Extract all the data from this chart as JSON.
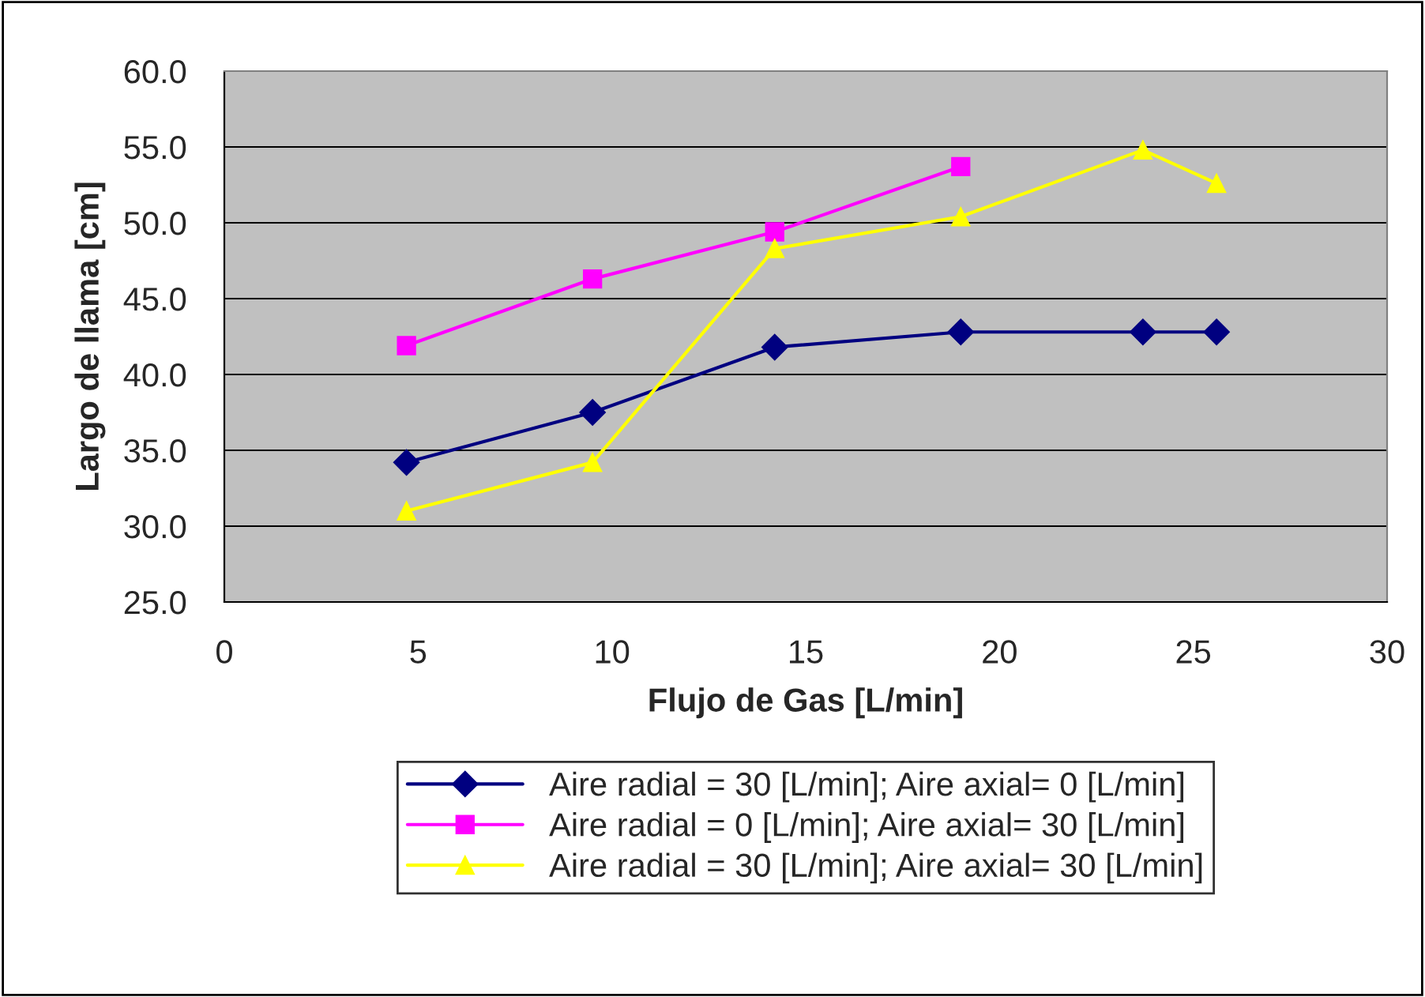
{
  "chart_data": {
    "type": "line",
    "xlabel": "Flujo de Gas [L/min]",
    "ylabel": "Largo de llama [cm]",
    "xlim": [
      0,
      30
    ],
    "xticks": [
      0,
      5,
      10,
      15,
      20,
      25,
      30
    ],
    "ylim": [
      25,
      60
    ],
    "yticks": [
      {
        "value": 25,
        "label": "25.0"
      },
      {
        "value": 30,
        "label": "30.0"
      },
      {
        "value": 35,
        "label": "35.0"
      },
      {
        "value": 40,
        "label": "40.0"
      },
      {
        "value": 45,
        "label": "45.0"
      },
      {
        "value": 50,
        "label": "50.0"
      },
      {
        "value": 55,
        "label": "55.0"
      },
      {
        "value": 60,
        "label": "60.0"
      }
    ],
    "grid": "y",
    "legend": "bottom",
    "series": [
      {
        "name": "Aire radial = 30 [L/min]; Aire axial= 0 [L/min]",
        "color": "#000080",
        "marker": "diamond",
        "x": [
          4.7,
          9.5,
          14.2,
          19.0,
          23.7,
          25.6
        ],
        "values": [
          34.2,
          37.5,
          41.8,
          42.8,
          42.8,
          42.8
        ]
      },
      {
        "name": "Aire radial = 0 [L/min]; Aire axial= 30 [L/min]",
        "color": "#ff00ff",
        "marker": "square",
        "x": [
          4.7,
          9.5,
          14.2,
          19.0
        ],
        "values": [
          41.9,
          46.3,
          49.4,
          53.7
        ]
      },
      {
        "name": "Aire radial = 30 [L/min]; Aire axial= 30 [L/min]",
        "color": "#ffff00",
        "marker": "triangle",
        "x": [
          4.7,
          9.5,
          14.2,
          19.0,
          23.7,
          25.6
        ],
        "values": [
          31.0,
          34.2,
          48.3,
          50.4,
          54.8,
          52.6
        ]
      }
    ]
  }
}
